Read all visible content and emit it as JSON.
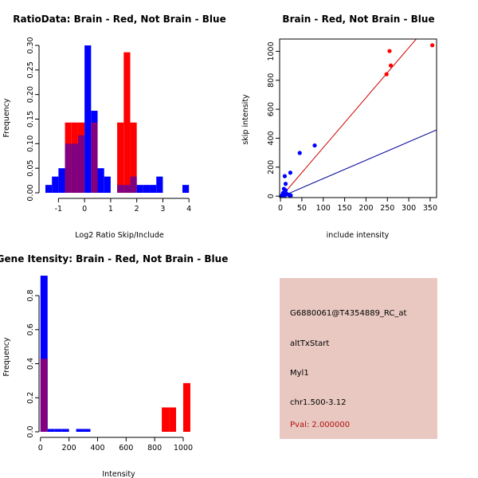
{
  "colors": {
    "red": "#ff0000",
    "blue": "#0000ff",
    "overlap": "#800080",
    "redline": "#cc0000",
    "blueline": "#000099",
    "panel_bg": "#e8c8c0",
    "pval": "#b01010"
  },
  "chart_data": [
    {
      "type": "bar",
      "id": "ratio",
      "title": "RatioData: Brain - Red, Not Brain - Blue",
      "xlabel": "Log2 Ratio Skip/Include",
      "ylabel": "Frequency",
      "xlim": [
        -1.5,
        4.3
      ],
      "ylim": [
        0,
        0.3
      ],
      "xticks": [
        -1,
        0,
        1,
        2,
        3,
        4
      ],
      "xtick_labels": [
        "-1",
        "0",
        "1",
        "2",
        "3",
        "4"
      ],
      "yticks": [
        0,
        0.05,
        0.1,
        0.15,
        0.2,
        0.25,
        0.3
      ],
      "ytick_labels": [
        "0.00",
        "0.05",
        "0.10",
        "0.15",
        "0.20",
        "0.25",
        "0.30"
      ],
      "bin_width": 0.25,
      "series": [
        {
          "name": "Not Brain",
          "color": "blue",
          "bars": [
            [
              -1.5,
              0.016
            ],
            [
              -1.25,
              0.033
            ],
            [
              -1.0,
              0.05
            ],
            [
              -0.75,
              0.1
            ],
            [
              -0.5,
              0.1
            ],
            [
              -0.25,
              0.117
            ],
            [
              0.0,
              0.3
            ],
            [
              0.25,
              0.167
            ],
            [
              0.5,
              0.05
            ],
            [
              0.75,
              0.033
            ],
            [
              1.25,
              0.016
            ],
            [
              1.5,
              0.016
            ],
            [
              1.75,
              0.033
            ],
            [
              2.0,
              0.016
            ],
            [
              2.25,
              0.016
            ],
            [
              2.5,
              0.016
            ],
            [
              2.75,
              0.033
            ],
            [
              3.75,
              0.016
            ]
          ]
        },
        {
          "name": "Brain",
          "color": "red",
          "bars": [
            [
              -0.75,
              0.143
            ],
            [
              -0.5,
              0.143
            ],
            [
              -0.25,
              0.143
            ],
            [
              0.25,
              0.143
            ],
            [
              1.25,
              0.143
            ],
            [
              1.5,
              0.286
            ],
            [
              1.75,
              0.143
            ]
          ]
        }
      ]
    },
    {
      "type": "scatter",
      "id": "scatter",
      "title": "Brain - Red, Not Brain - Blue",
      "xlabel": "include intensity",
      "ylabel": "skip intensity",
      "xlim": [
        -2,
        365
      ],
      "ylim": [
        -10,
        1085
      ],
      "xticks": [
        0,
        50,
        100,
        150,
        200,
        250,
        300,
        350
      ],
      "xtick_labels": [
        "0",
        "50",
        "100",
        "150",
        "200",
        "250",
        "300",
        "350"
      ],
      "yticks": [
        0,
        200,
        400,
        600,
        800,
        1000
      ],
      "ytick_labels": [
        "0",
        "200",
        "400",
        "600",
        "800",
        "1000"
      ],
      "series": [
        {
          "name": "Brain",
          "color": "red",
          "points": [
            [
              355,
              1042
            ],
            [
              255,
              1002
            ],
            [
              258,
              902
            ],
            [
              248,
              842
            ]
          ]
        },
        {
          "name": "Not Brain",
          "color": "blue",
          "points": [
            [
              80,
              350
            ],
            [
              45,
              298
            ],
            [
              23,
              162
            ],
            [
              10,
              138
            ],
            [
              12,
              85
            ],
            [
              8,
              50
            ],
            [
              12,
              40
            ],
            [
              6,
              22
            ],
            [
              15,
              15
            ],
            [
              20,
              8
            ],
            [
              4,
              6
            ],
            [
              10,
              4
            ],
            [
              24,
              5
            ],
            [
              2,
              2
            ]
          ]
        }
      ],
      "lines": [
        {
          "name": "Brain fit",
          "color": "redline",
          "slope": 3.45,
          "intercept": -10
        },
        {
          "name": "Not Brain fit",
          "color": "blueline",
          "slope": 1.27,
          "intercept": -6
        }
      ]
    },
    {
      "type": "bar",
      "id": "gene",
      "title": "Gene Itensity: Brain - Red, Not Brain - Blue",
      "xlabel": "Intensity",
      "ylabel": "Frequency",
      "xlim": [
        -10,
        1095
      ],
      "ylim": [
        0,
        0.95
      ],
      "xticks": [
        0,
        200,
        400,
        600,
        800,
        1000
      ],
      "xtick_labels": [
        "0",
        "200",
        "400",
        "600",
        "800",
        "1000"
      ],
      "yticks": [
        0,
        0.2,
        0.4,
        0.6,
        0.8
      ],
      "ytick_labels": [
        "0.0",
        "0.2",
        "0.4",
        "0.6",
        "0.8"
      ],
      "bin_width": 50,
      "series": [
        {
          "name": "Not Brain",
          "color": "blue",
          "bars": [
            [
              0,
              0.917
            ],
            [
              50,
              0.0167
            ],
            [
              100,
              0.0167
            ],
            [
              150,
              0.0167
            ],
            [
              250,
              0.0167
            ],
            [
              300,
              0.0167
            ]
          ]
        },
        {
          "name": "Brain",
          "color": "red",
          "bars": [
            [
              0,
              0.429
            ],
            [
              850,
              0.143
            ],
            [
              900,
              0.143
            ],
            [
              1000,
              0.286
            ]
          ]
        }
      ]
    }
  ],
  "info_panel": {
    "probe_id": "G6880061@T4354889_RC_at",
    "event_type": "altTxStart",
    "gene": "Myl1",
    "location": "chr1.500-3.12",
    "pval": "Pval: 2.000000"
  }
}
